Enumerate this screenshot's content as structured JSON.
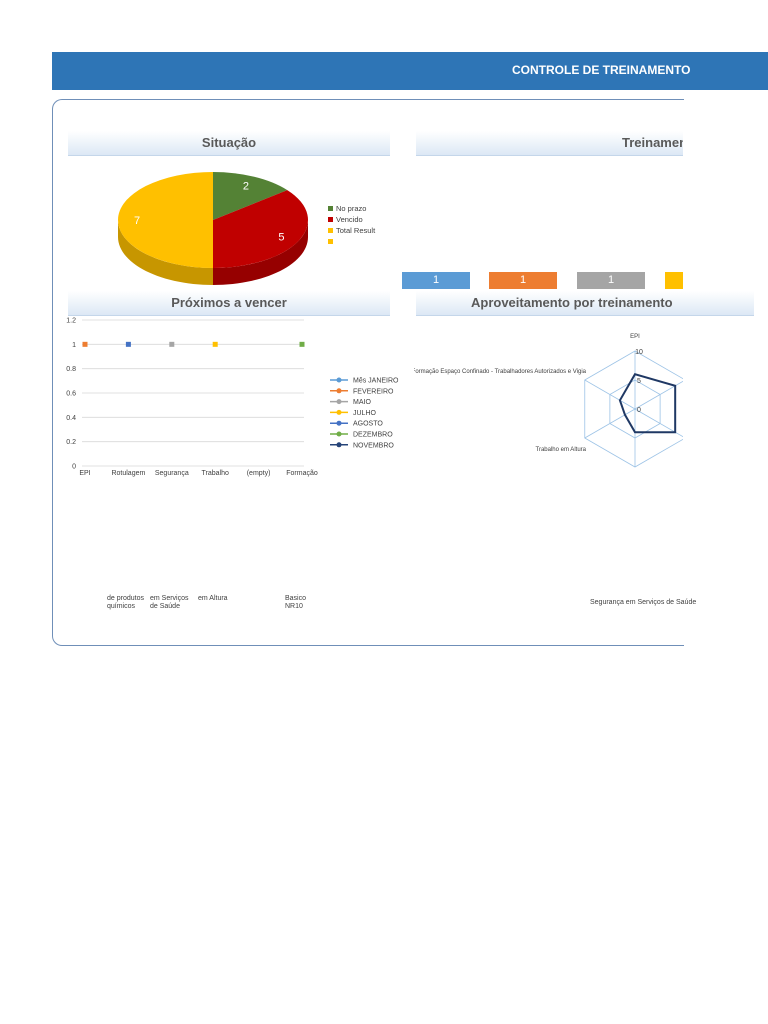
{
  "header": {
    "title": "CONTROLE DE TREINAMENTO"
  },
  "cards": {
    "situacao": "Situação",
    "treinamentos": "Treinamentos",
    "proximos": "Próximos a vencer",
    "aproveitamento": "Aproveitamento por treinamento"
  },
  "colors": {
    "header": "#2e75b6",
    "green": "#548235",
    "red": "#c00000",
    "yellow": "#ffc000",
    "blue": "#5b9bd5",
    "orange": "#ed7d31",
    "gray": "#a5a5a5"
  },
  "chart_data": [
    {
      "type": "pie",
      "title": "Situação",
      "legend_position": "right",
      "slices": [
        {
          "name": "No prazo",
          "value": 2,
          "label": "2",
          "color": "#548235"
        },
        {
          "name": "Vencido",
          "value": 5,
          "label": "5",
          "color": "#c00000"
        },
        {
          "name": "Total Result",
          "value": 7,
          "label": "7",
          "color": "#ffc000"
        }
      ],
      "extra_legend_entries": [
        {
          "name": "",
          "color": "#ffc000"
        }
      ]
    },
    {
      "type": "bar",
      "title": "Treinamentos",
      "boxes": [
        {
          "label": "1",
          "color": "#5b9bd5"
        },
        {
          "label": "1",
          "color": "#ed7d31"
        },
        {
          "label": "1",
          "color": "#a5a5a5"
        },
        {
          "label": "",
          "color": "#ffc000"
        }
      ]
    },
    {
      "type": "line",
      "title": "Próximos a vencer",
      "categories": [
        "EPI",
        "Rotulagem de produtos químicos",
        "Segurança em Serviços de Saúde",
        "Trabalho em Altura",
        "(empty)",
        "Formação Basico NR10"
      ],
      "category_top_labels": [
        "EPI",
        "Rotulagem",
        "Segurança",
        "Trabalho",
        "(empty)",
        "Formação"
      ],
      "category_bottom_lines": [
        [
          "",
          ""
        ],
        [
          "de produtos",
          "químicos"
        ],
        [
          "em Serviços",
          "de Saúde"
        ],
        [
          "em Altura",
          ""
        ],
        [
          "",
          ""
        ],
        [
          "Basico",
          "NR10"
        ]
      ],
      "ylim": [
        0,
        1.2
      ],
      "yticks": [
        "0",
        "0.2",
        "0.4",
        "0.6",
        "0.8",
        "1",
        "1.2"
      ],
      "grid": true,
      "legend_position": "right",
      "series": [
        {
          "name": "Mês JANEIRO",
          "color": "#5b9bd5",
          "points": []
        },
        {
          "name": "FEVEREIRO",
          "color": "#ed7d31",
          "points": [
            {
              "x": "EPI",
              "y": 1
            }
          ]
        },
        {
          "name": "MAIO",
          "color": "#a5a5a5",
          "points": [
            {
              "x": "Segurança em Serviços de Saúde",
              "y": 1
            }
          ]
        },
        {
          "name": "JULHO",
          "color": "#ffc000",
          "points": [
            {
              "x": "Trabalho em Altura",
              "y": 1
            }
          ]
        },
        {
          "name": "AGOSTO",
          "color": "#4472c4",
          "points": [
            {
              "x": "Rotulagem de produtos químicos",
              "y": 1
            }
          ]
        },
        {
          "name": "DEZEMBRO",
          "color": "#70ad47",
          "points": [
            {
              "x": "Formação Basico NR10",
              "y": 1
            }
          ]
        },
        {
          "name": "NOVEMBRO",
          "color": "#264478",
          "points": []
        }
      ]
    },
    {
      "type": "radar",
      "title": "Aproveitamento por treinamento",
      "axes": [
        "EPI",
        "",
        "",
        "Segurança em Serviços de Saúde",
        "Trabalho em Altura",
        "Formação Espaço Confinado - Trabalhadores Autorizados e Vigia"
      ],
      "rlim": [
        0,
        10
      ],
      "rticks": [
        "0",
        "5",
        "10"
      ],
      "series": [
        {
          "name": "",
          "color": "#1f3864",
          "values": [
            6,
            8,
            8,
            4,
            2,
            3
          ]
        }
      ]
    }
  ]
}
